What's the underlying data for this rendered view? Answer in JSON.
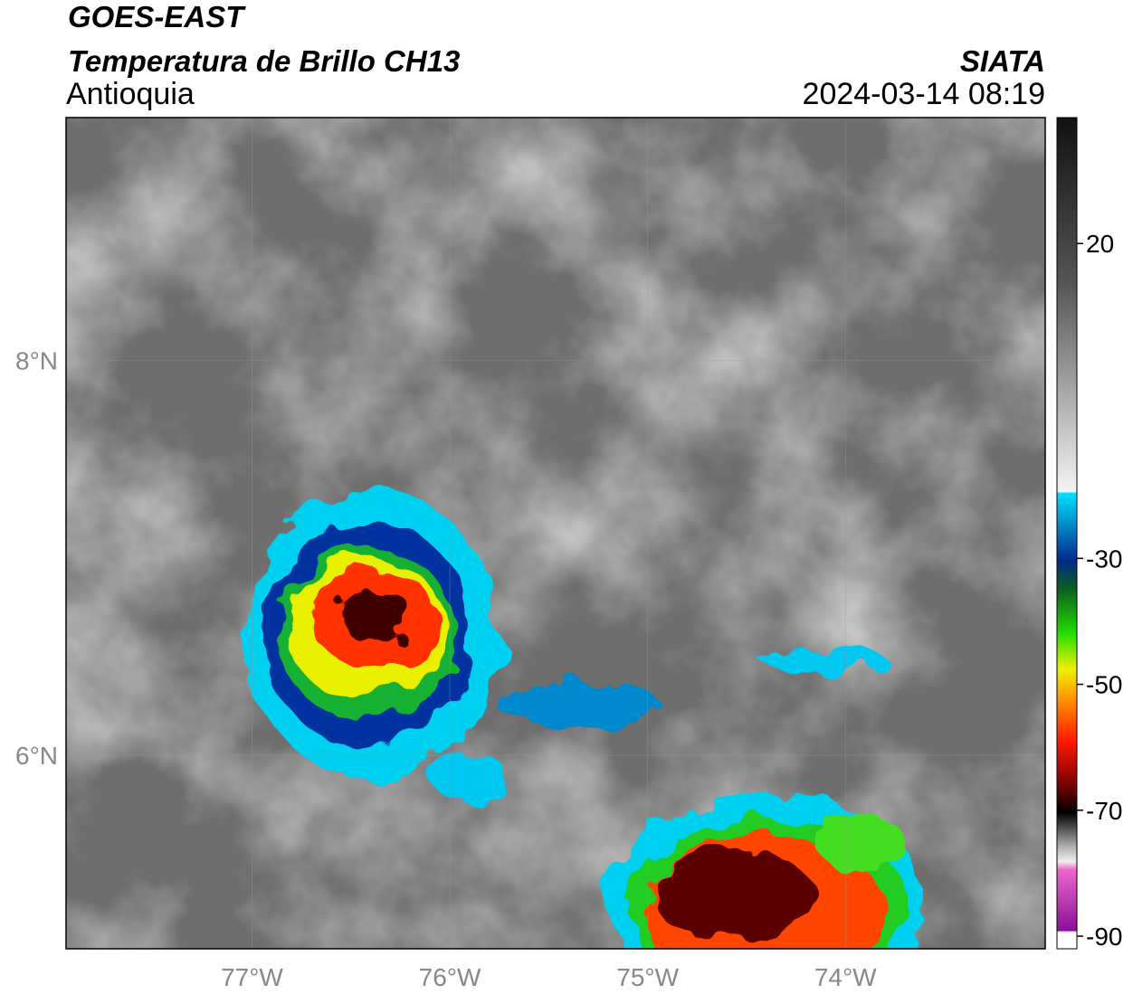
{
  "header": {
    "title": "GOES-EAST",
    "subtitle": "Temperatura de Brillo CH13",
    "region": "Antioquia",
    "source": "SIATA",
    "datetime": "2024-03-14 08:19"
  },
  "map": {
    "xlim": [
      -77.94,
      -72.99
    ],
    "ylim": [
      5.02,
      9.23
    ],
    "xticks": [
      {
        "value": -77,
        "label": "77°W"
      },
      {
        "value": -76,
        "label": "76°W"
      },
      {
        "value": -75,
        "label": "75°W"
      },
      {
        "value": -74,
        "label": "74°W"
      }
    ],
    "yticks": [
      {
        "value": 6,
        "label": "6°N"
      },
      {
        "value": 8,
        "label": "8°N"
      }
    ],
    "grid": true
  },
  "colorbar": {
    "clim": [
      -92,
      40
    ],
    "ticks": [
      20,
      -30,
      -50,
      -70,
      -90
    ]
  }
}
